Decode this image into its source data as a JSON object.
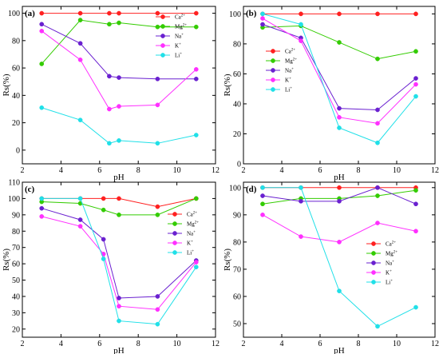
{
  "chart_data": [
    {
      "type": "line",
      "label": "(a)",
      "xlabel": "pH",
      "ylabel": "Rs(%)",
      "xlim": [
        2,
        12
      ],
      "ylim": [
        -10,
        105
      ],
      "xticks": [
        "2",
        "4",
        "6",
        "8",
        "10",
        "12"
      ],
      "yticks": [
        "0",
        "20",
        "40",
        "60",
        "80",
        "100"
      ],
      "series": [
        {
          "name": "Ca",
          "sup": "2+",
          "color": "#ff2020",
          "marker": "circle",
          "x": [
            3,
            5,
            6.5,
            7,
            9,
            11
          ],
          "y": [
            100,
            100,
            100,
            100,
            100,
            100
          ]
        },
        {
          "name": "Mg",
          "sup": "2+",
          "color": "#33cc00",
          "marker": "circle",
          "x": [
            3,
            5,
            6.5,
            7,
            9,
            11
          ],
          "y": [
            63,
            95,
            92,
            93,
            90,
            90
          ]
        },
        {
          "name": "Na",
          "sup": "+",
          "color": "#6a20d0",
          "marker": "circle",
          "x": [
            3,
            5,
            6.5,
            7,
            9,
            11
          ],
          "y": [
            92,
            78,
            54,
            53,
            52,
            52
          ]
        },
        {
          "name": "K",
          "sup": "+",
          "color": "#ff30ff",
          "marker": "circle",
          "x": [
            3,
            5,
            6.5,
            7,
            9,
            11
          ],
          "y": [
            87,
            66,
            30,
            32,
            33,
            59
          ]
        },
        {
          "name": "Li",
          "sup": "+",
          "color": "#20e0e8",
          "marker": "circle",
          "x": [
            3,
            5,
            6.5,
            7,
            9,
            11
          ],
          "y": [
            31,
            22,
            5,
            7,
            5,
            11
          ]
        }
      ]
    },
    {
      "type": "line",
      "label": "(b)",
      "xlabel": "pH",
      "ylabel": "Rs(%)",
      "xlim": [
        2,
        12
      ],
      "ylim": [
        0,
        105
      ],
      "xticks": [
        "2",
        "4",
        "6",
        "8",
        "10",
        "12"
      ],
      "yticks": [
        "0",
        "20",
        "40",
        "60",
        "80",
        "100"
      ],
      "series": [
        {
          "name": "Ca",
          "sup": "2+",
          "color": "#ff2020",
          "marker": "circle",
          "x": [
            3,
            5,
            7,
            9,
            11
          ],
          "y": [
            100,
            100,
            100,
            100,
            100
          ]
        },
        {
          "name": "Mg",
          "sup": "2+",
          "color": "#33cc00",
          "marker": "circle",
          "x": [
            3,
            5,
            7,
            9,
            11
          ],
          "y": [
            91,
            92,
            81,
            70,
            75
          ]
        },
        {
          "name": "Na",
          "sup": "+",
          "color": "#6a20d0",
          "marker": "circle",
          "x": [
            3,
            5,
            7,
            9,
            11
          ],
          "y": [
            93,
            84,
            37,
            36,
            57
          ]
        },
        {
          "name": "K",
          "sup": "+",
          "color": "#ff30ff",
          "marker": "circle",
          "x": [
            3,
            5,
            7,
            9,
            11
          ],
          "y": [
            97,
            82,
            31,
            27,
            53
          ]
        },
        {
          "name": "Li",
          "sup": "+",
          "color": "#20e0e8",
          "marker": "circle",
          "x": [
            3,
            5,
            7,
            9,
            11
          ],
          "y": [
            100,
            93,
            24,
            14,
            45
          ]
        }
      ]
    },
    {
      "type": "line",
      "label": "(c)",
      "xlabel": "pH",
      "ylabel": "Rs(%)",
      "xlim": [
        2,
        12
      ],
      "ylim": [
        15,
        110
      ],
      "xticks": [
        "2",
        "4",
        "6",
        "8",
        "10",
        "12"
      ],
      "yticks": [
        "20",
        "30",
        "40",
        "50",
        "60",
        "70",
        "80",
        "90",
        "100",
        "110"
      ],
      "series": [
        {
          "name": "Ca",
          "sup": "2+",
          "color": "#ff2020",
          "marker": "circle",
          "x": [
            3,
            5,
            6.2,
            7,
            9,
            11
          ],
          "y": [
            100,
            100,
            100,
            100,
            95,
            100
          ]
        },
        {
          "name": "Mg",
          "sup": "2+",
          "color": "#33cc00",
          "marker": "circle",
          "x": [
            3,
            5,
            6.2,
            7,
            9,
            11
          ],
          "y": [
            98,
            97,
            93,
            90,
            90,
            100
          ]
        },
        {
          "name": "Na",
          "sup": "+",
          "color": "#6a20d0",
          "marker": "circle",
          "x": [
            3,
            5,
            6.2,
            7,
            9,
            11
          ],
          "y": [
            94,
            87,
            75,
            39,
            40,
            62
          ]
        },
        {
          "name": "K",
          "sup": "+",
          "color": "#ff30ff",
          "marker": "circle",
          "x": [
            3,
            5,
            6.2,
            7,
            9,
            11
          ],
          "y": [
            89,
            83,
            66,
            34,
            32,
            61
          ]
        },
        {
          "name": "Li",
          "sup": "+",
          "color": "#20e0e8",
          "marker": "circle",
          "x": [
            3,
            5,
            6.2,
            7,
            9,
            11
          ],
          "y": [
            100,
            100,
            63,
            25,
            23,
            58
          ]
        }
      ]
    },
    {
      "type": "line",
      "label": "(d)",
      "xlabel": "pH",
      "ylabel": "Rs(%)",
      "xlim": [
        2,
        12
      ],
      "ylim": [
        45,
        102
      ],
      "xticks": [
        "2",
        "4",
        "6",
        "8",
        "10",
        "12"
      ],
      "yticks": [
        "50",
        "60",
        "70",
        "80",
        "90",
        "100"
      ],
      "series": [
        {
          "name": "Ca",
          "sup": "2+",
          "color": "#ff2020",
          "marker": "circle",
          "x": [
            3,
            5,
            7,
            9,
            11
          ],
          "y": [
            100,
            100,
            100,
            100,
            100
          ]
        },
        {
          "name": "Mg",
          "sup": "2+",
          "color": "#33cc00",
          "marker": "circle",
          "x": [
            3,
            5,
            7,
            9,
            11
          ],
          "y": [
            94,
            96,
            96,
            97,
            99
          ]
        },
        {
          "name": "Na",
          "sup": "+",
          "color": "#6a20d0",
          "marker": "circle",
          "x": [
            3,
            5,
            7,
            9,
            11
          ],
          "y": [
            97,
            95,
            95,
            100,
            94
          ]
        },
        {
          "name": "K",
          "sup": "+",
          "color": "#ff30ff",
          "marker": "circle",
          "x": [
            3,
            5,
            7,
            9,
            11
          ],
          "y": [
            90,
            82,
            80,
            87,
            84
          ]
        },
        {
          "name": "Li",
          "sup": "+",
          "color": "#20e0e8",
          "marker": "circle",
          "x": [
            3,
            5,
            7,
            9,
            11
          ],
          "y": [
            100,
            100,
            62,
            49,
            56
          ]
        }
      ]
    }
  ]
}
